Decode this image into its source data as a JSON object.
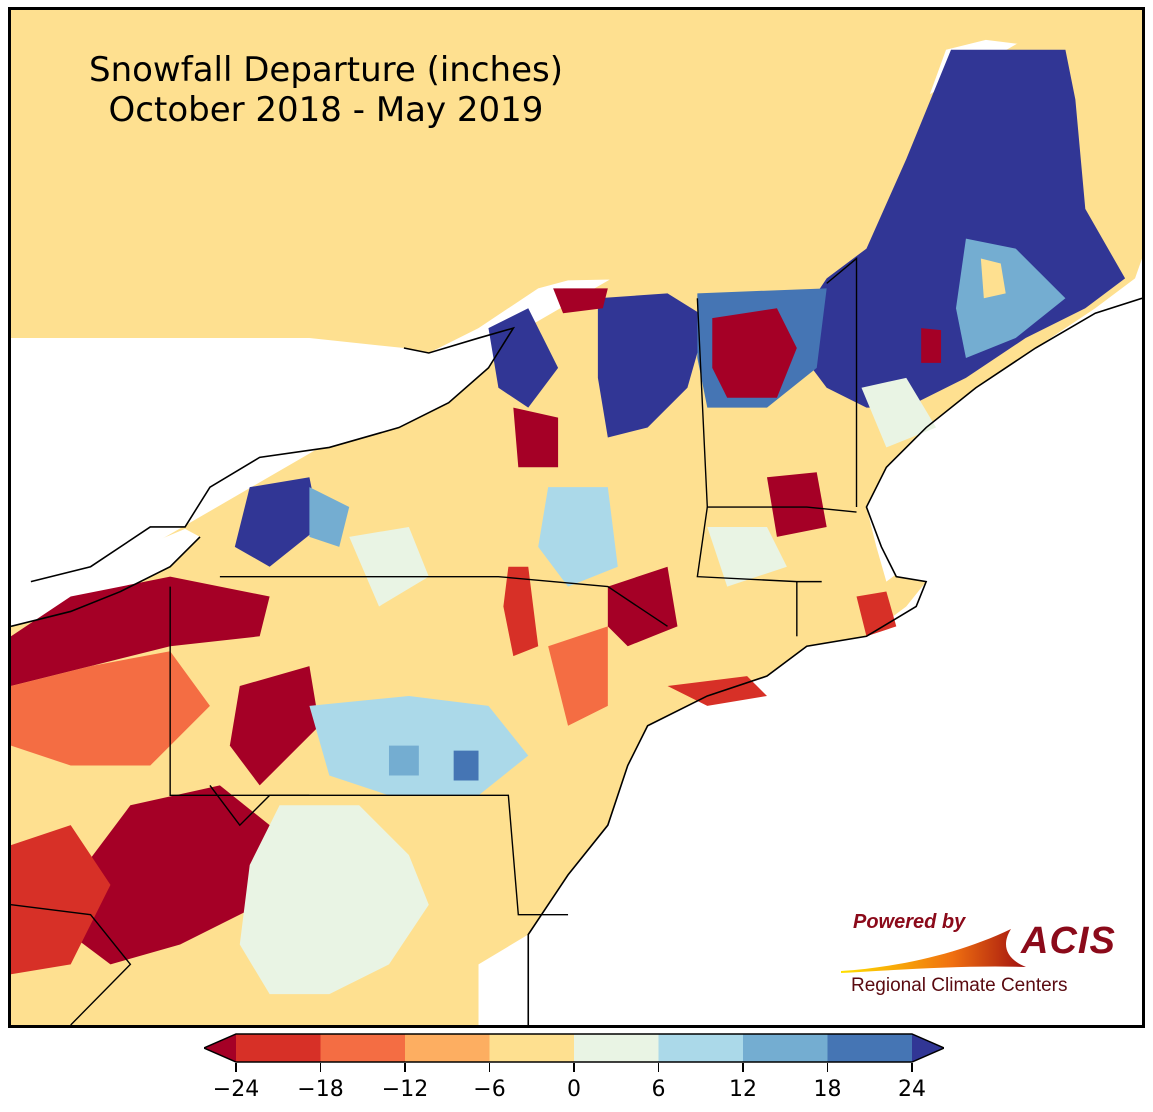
{
  "title": {
    "line1": "Snowfall Departure (inches)",
    "line2": "October 2018 - May 2019"
  },
  "credit": {
    "powered_by": "Powered by",
    "acis": "ACIS",
    "regional": "Regional Climate Centers"
  },
  "legend": {
    "ticks": [
      "−24",
      "−18",
      "−12",
      "−6",
      "0",
      "6",
      "12",
      "18",
      "24"
    ],
    "bins": [
      {
        "range": "< -24",
        "color": "#a50026"
      },
      {
        "range": "-24 to -18",
        "color": "#d73027"
      },
      {
        "range": "-18 to -12",
        "color": "#f46d43"
      },
      {
        "range": "-12 to -6",
        "color": "#fdae61"
      },
      {
        "range": "-6 to 0",
        "color": "#fee090"
      },
      {
        "range": "0 to 6",
        "color": "#e9f4e4"
      },
      {
        "range": "6 to 12",
        "color": "#abd9e9"
      },
      {
        "range": "12 to 18",
        "color": "#74add1"
      },
      {
        "range": "18 to 24",
        "color": "#4575b4"
      },
      {
        "range": "> 24",
        "color": "#313695"
      }
    ]
  }
}
